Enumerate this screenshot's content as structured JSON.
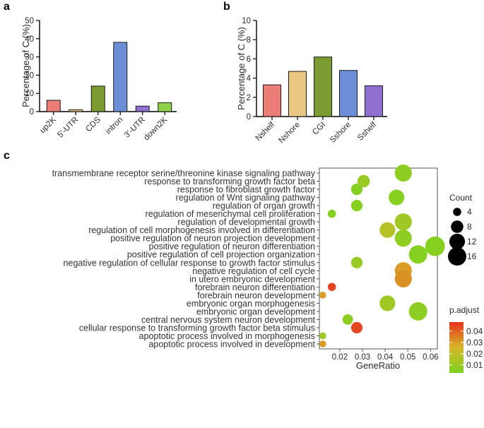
{
  "panels": {
    "a": "a",
    "b": "b",
    "c": "c"
  },
  "chart_data": [
    {
      "type": "bar",
      "title": "",
      "xlabel": "",
      "ylabel": "Percentage of C (%)",
      "ylim": [
        0,
        50
      ],
      "yticks": [
        "0",
        "10",
        "20",
        "30",
        "40",
        "50"
      ],
      "categories": [
        "up2K",
        "5'-UTR",
        "CDS",
        "intron",
        "3'-UTR",
        "down2K"
      ],
      "values": [
        6.2,
        1.0,
        14.0,
        38.0,
        3.0,
        4.9
      ],
      "colors": [
        "#ec7d76",
        "#e8c882",
        "#7c9b30",
        "#6b8ed6",
        "#8f6fd0",
        "#8ed24a"
      ]
    },
    {
      "type": "bar",
      "title": "",
      "xlabel": "",
      "ylabel": "Percentage of C (%)",
      "ylim": [
        0,
        10
      ],
      "yticks": [
        "0",
        "2",
        "4",
        "6",
        "8",
        "10"
      ],
      "categories": [
        "Nshelf",
        "Nshore",
        "CGI",
        "Sshore",
        "Sshelf"
      ],
      "values": [
        3.3,
        4.7,
        6.2,
        4.8,
        3.2
      ],
      "colors": [
        "#ec7d76",
        "#e8c882",
        "#7c9b30",
        "#6b8ed6",
        "#8f6fd0"
      ]
    },
    {
      "type": "scatter",
      "title": "",
      "xlabel": "GeneRatio",
      "ylabel": "",
      "xlim": [
        0.011,
        0.063
      ],
      "xticks": [
        0.02,
        0.03,
        0.04,
        0.05,
        0.06
      ],
      "xtick_labels": [
        "0.02",
        "0.03",
        "0.04",
        "0.05",
        "0.06"
      ],
      "terms": [
        "transmembrane receptor serine/threonine kinase signaling pathway",
        "response to transforming growth factor beta",
        "response to fibroblast growth factor",
        "regulation of Wnt signaling pathway",
        "regulation of organ growth",
        "regulation of mesenchymal cell proliferation",
        "regulation of developmental growth",
        "regulation of cell morphogenesis involved in differentiation",
        "positive regulation of neuron projection development",
        "positive regulation of neuron differentiation",
        "positive regulation of cell projection organization",
        "negative regulation of cellular response to growth factor stimulus",
        "negative regulation of cell cycle",
        "in utero embryonic development",
        "forebrain neuron differentiation",
        "forebrain neuron development",
        "embryonic organ morphogenesis",
        "embryonic organ development",
        "central nervous system neuron development",
        "cellular response to transforming growth factor beta stimulus",
        "apoptotic process involved in morphogenesis",
        "apoptotic process involved in development"
      ],
      "gene_ratio": [
        0.048,
        0.0305,
        0.0275,
        0.045,
        0.0275,
        0.0165,
        0.048,
        0.041,
        0.048,
        0.062,
        0.0545,
        0.0275,
        0.048,
        0.048,
        0.0165,
        0.0125,
        0.041,
        0.0545,
        0.0235,
        0.0275,
        0.0125,
        0.0125
      ],
      "count": [
        14,
        8,
        7,
        12,
        7,
        4,
        14,
        12,
        14,
        18,
        16,
        7,
        14,
        14,
        4,
        3,
        12,
        16,
        6,
        7,
        3,
        3
      ],
      "p_adjust": [
        0.007,
        0.01,
        0.005,
        0.005,
        0.005,
        0.005,
        0.012,
        0.017,
        0.007,
        0.005,
        0.005,
        0.01,
        0.03,
        0.032,
        0.045,
        0.03,
        0.012,
        0.007,
        0.007,
        0.044,
        0.012,
        0.03
      ],
      "legend_count": {
        "title": "Count",
        "values": [
          4,
          8,
          12,
          16
        ],
        "labels": [
          "4",
          "8",
          "12",
          "16"
        ]
      },
      "legend_color": {
        "title": "p.adjust",
        "range": [
          0.003,
          0.048
        ],
        "ticks": [
          0.01,
          0.02,
          0.03,
          0.04
        ],
        "tick_labels": [
          "0.01",
          "0.02",
          "0.03",
          "0.04"
        ],
        "low_color": "#7ed321",
        "high_color": "#e8321e"
      }
    }
  ]
}
